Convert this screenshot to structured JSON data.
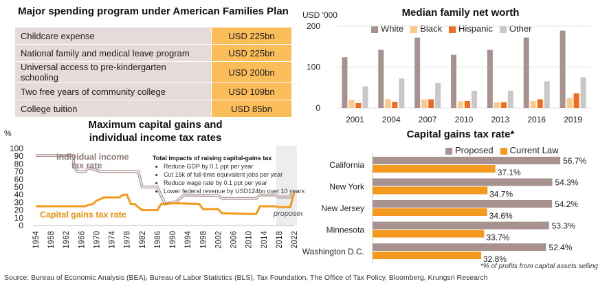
{
  "panel_table": {
    "title": "Major spending program under American Families Plan",
    "rows": [
      {
        "program": "Childcare expense",
        "amount": "USD 225bn"
      },
      {
        "program": "National family and medical leave program",
        "amount": "USD 225bn"
      },
      {
        "program": "Universal access to pre-kindergarten schooling",
        "amount": "USD 200bn"
      },
      {
        "program": "Two free years of community college",
        "amount": "USD 109bn"
      },
      {
        "program": "College tuition",
        "amount": "USD 85bn"
      }
    ]
  },
  "source": "Source: Bureau of Economic Analysis (BEA), Bureau of Labor Statistics (BLS), Tax Foundation, The Office of Tax Policy, Bloomberg, Krungsri Research",
  "chart_data": [
    {
      "type": "bar",
      "title": "Median family net worth",
      "unit_label": "USD '000",
      "categories": [
        "2001",
        "2004",
        "2007",
        "2010",
        "2013",
        "2016",
        "2019"
      ],
      "ylim": [
        0,
        200
      ],
      "yticks": [
        0,
        100,
        200
      ],
      "legend_position": "top",
      "series": [
        {
          "name": "White",
          "color": "#a89290",
          "values": [
            124,
            142,
            172,
            130,
            142,
            172,
            189
          ]
        },
        {
          "name": "Black",
          "color": "#fbc98a",
          "values": [
            20,
            22,
            21,
            16,
            14,
            17,
            24
          ]
        },
        {
          "name": "Hispanic",
          "color": "#f26a1b",
          "values": [
            12,
            15,
            21,
            17,
            14,
            21,
            36
          ]
        },
        {
          "name": "Other",
          "color": "#c8c8c8",
          "values": [
            53,
            72,
            61,
            42,
            42,
            65,
            75
          ]
        }
      ]
    },
    {
      "type": "line",
      "title": "Maximum capital gains and individual income tax rates",
      "ylabel": "%",
      "ylim": [
        0,
        100
      ],
      "yticks": [
        0,
        10,
        20,
        30,
        40,
        50,
        60,
        70,
        80,
        90,
        100
      ],
      "xlim": [
        1954,
        2022
      ],
      "xticks": [
        1954,
        1958,
        1962,
        1966,
        1970,
        1974,
        1978,
        1982,
        1986,
        1990,
        1994,
        1998,
        2002,
        2006,
        2010,
        2014,
        2018,
        2022
      ],
      "proposed_label": "proposed",
      "series": [
        {
          "name": "Individual income tax rate",
          "label_lines": [
            "Individual income",
            "tax rate"
          ],
          "color": "#a89290",
          "points": [
            [
              1954,
              91
            ],
            [
              1964,
              91
            ],
            [
              1964,
              77
            ],
            [
              1965,
              70
            ],
            [
              1967,
              70
            ],
            [
              1968,
              75
            ],
            [
              1970,
              71.75
            ],
            [
              1971,
              70
            ],
            [
              1981,
              70
            ],
            [
              1982,
              50
            ],
            [
              1986,
              50
            ],
            [
              1987,
              38.5
            ],
            [
              1988,
              28
            ],
            [
              1991,
              31
            ],
            [
              1993,
              39.6
            ],
            [
              2001,
              39.1
            ],
            [
              2002,
              38.6
            ],
            [
              2003,
              35
            ],
            [
              2012,
              35
            ],
            [
              2013,
              39.6
            ],
            [
              2017,
              39.6
            ],
            [
              2018,
              37
            ],
            [
              2021,
              37
            ],
            [
              2022,
              39.6
            ]
          ]
        },
        {
          "name": "Capital gains tax rate",
          "label_lines": [
            "Capital gains tax rate"
          ],
          "color": "#f39a1e",
          "points": [
            [
              1954,
              25
            ],
            [
              1967,
              25
            ],
            [
              1968,
              26.9
            ],
            [
              1969,
              27.9
            ],
            [
              1970,
              32.2
            ],
            [
              1971,
              34.25
            ],
            [
              1972,
              36.5
            ],
            [
              1976,
              36.5
            ],
            [
              1977,
              39.9
            ],
            [
              1978,
              39.9
            ],
            [
              1979,
              28
            ],
            [
              1980,
              28
            ],
            [
              1981,
              23.7
            ],
            [
              1982,
              20
            ],
            [
              1986,
              20
            ],
            [
              1987,
              28
            ],
            [
              1991,
              28.9
            ],
            [
              1997,
              28
            ],
            [
              1998,
              21.2
            ],
            [
              2002,
              21.2
            ],
            [
              2003,
              16.1
            ],
            [
              2010,
              15
            ],
            [
              2012,
              15
            ],
            [
              2013,
              25
            ],
            [
              2017,
              25
            ],
            [
              2018,
              23.8
            ],
            [
              2021,
              23.8
            ],
            [
              2022,
              43.4
            ]
          ]
        }
      ],
      "annotation": {
        "title": "Total impacts of raising capital-gains tax",
        "items": [
          "Reduce GDP by 0.1 ppt per year",
          "Cut 15k of full-time equivalent jobs per year",
          "Reduce wage rate by 0.1 ppt per year",
          "Lower federal revenue by USD124bn over 10 years"
        ]
      }
    },
    {
      "type": "bar",
      "orientation": "horizontal",
      "title": "Capital gains tax rate*",
      "categories": [
        "California",
        "New York",
        "New Jersey",
        "Minnesota",
        "Washington D.C."
      ],
      "legend_position": "top",
      "series": [
        {
          "name": "Proposed",
          "color": "#a89290",
          "values": [
            56.7,
            54.3,
            54.2,
            53.3,
            52.4
          ]
        },
        {
          "name": "Current Law",
          "color": "#f39a1e",
          "values": [
            37.1,
            34.7,
            34.6,
            33.7,
            32.8
          ]
        }
      ],
      "footnote": "*% of profits from capital assets selling"
    }
  ]
}
